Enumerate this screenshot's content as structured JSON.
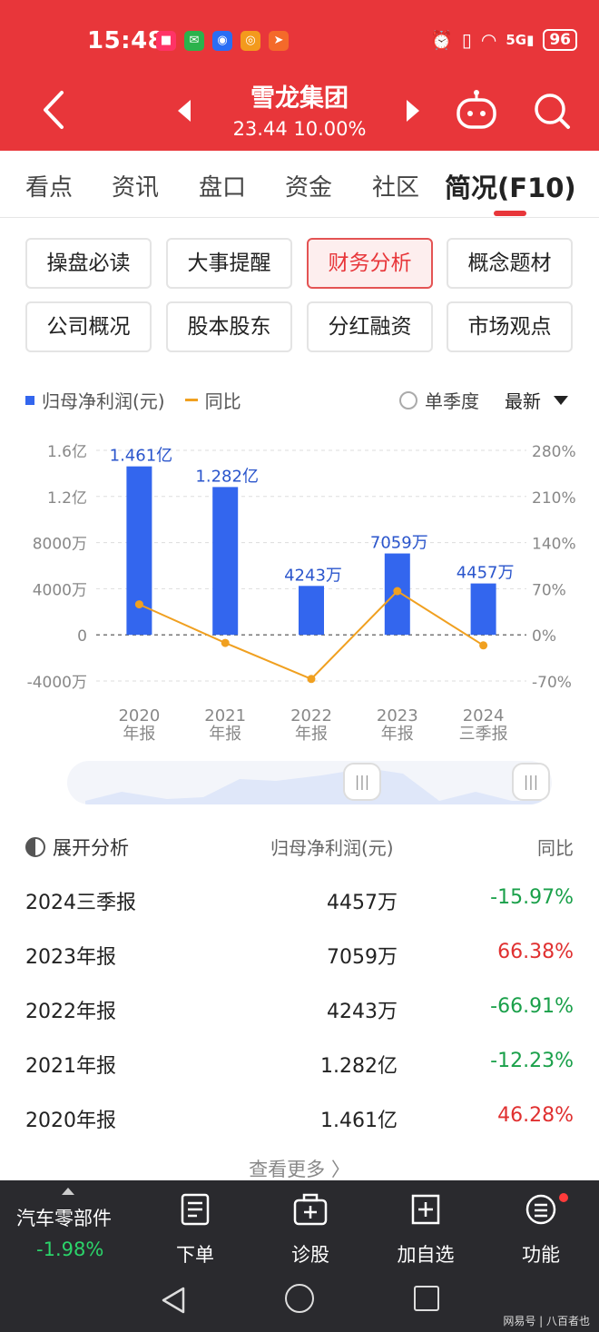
{
  "status_bar": {
    "time": "15:48",
    "network": "5G",
    "battery": "96"
  },
  "header": {
    "stock_name": "雪龙集团",
    "stock_price": "23.44 10.00%"
  },
  "tabs": [
    {
      "label": "看点"
    },
    {
      "label": "资讯"
    },
    {
      "label": "盘口"
    },
    {
      "label": "资金"
    },
    {
      "label": "社区"
    },
    {
      "label": "简况(F10)"
    }
  ],
  "active_tab": "简况(F10)",
  "buttons": [
    {
      "label": "操盘必读"
    },
    {
      "label": "大事提醒"
    },
    {
      "label": "财务分析"
    },
    {
      "label": "概念题材"
    },
    {
      "label": "公司概况"
    },
    {
      "label": "股本股东"
    },
    {
      "label": "分红融资"
    },
    {
      "label": "市场观点"
    }
  ],
  "active_button": "财务分析",
  "legend": {
    "bar_label": "归母净利润(元)",
    "line_label": "同比",
    "quarterly_label": "单季度",
    "latest_label": "最新"
  },
  "colors": {
    "accent": "#e8363a",
    "bar": "#3366ee",
    "line": "#f0a020",
    "positive": "#e03030",
    "negative": "#1aa04a"
  },
  "chart_data": {
    "type": "bar",
    "categories": [
      "2020年报",
      "2021年报",
      "2022年报",
      "2023年报",
      "2024三季报"
    ],
    "category_lines": [
      [
        "2020",
        "年报"
      ],
      [
        "2021",
        "年报"
      ],
      [
        "2022",
        "年报"
      ],
      [
        "2023",
        "年报"
      ],
      [
        "2024",
        "三季报"
      ]
    ],
    "series": [
      {
        "name": "归母净利润(元)",
        "type": "bar",
        "axis": "left",
        "values": [
          14610,
          12820,
          4243,
          7059,
          4457
        ],
        "unit": "万",
        "labels": [
          "1.461亿",
          "1.282亿",
          "4243万",
          "7059万",
          "4457万"
        ]
      },
      {
        "name": "同比",
        "type": "line",
        "axis": "right",
        "values": [
          46.28,
          -12.23,
          -66.91,
          66.38,
          -15.97
        ],
        "unit": "%"
      }
    ],
    "y_left": {
      "ticks": [
        16000,
        12000,
        8000,
        4000,
        0,
        -4000
      ],
      "tick_labels": [
        "1.6亿",
        "1.2亿",
        "8000万",
        "4000万",
        "0",
        "-4000万"
      ],
      "ylim": [
        -4000,
        16000
      ]
    },
    "y_right": {
      "ticks": [
        280,
        210,
        140,
        70,
        0,
        -70
      ],
      "tick_labels": [
        "280%",
        "210%",
        "140%",
        "70%",
        "0%",
        "-70%"
      ],
      "ylim": [
        -70,
        280
      ]
    },
    "grid": true
  },
  "table": {
    "header": {
      "expand": "展开分析",
      "col2": "归母净利润(元)",
      "col3": "同比"
    },
    "rows": [
      {
        "period": "2024三季报",
        "profit": "4457万",
        "yoy": "-15.97%",
        "dir": "neg"
      },
      {
        "period": "2023年报",
        "profit": "7059万",
        "yoy": "66.38%",
        "dir": "pos"
      },
      {
        "period": "2022年报",
        "profit": "4243万",
        "yoy": "-66.91%",
        "dir": "neg"
      },
      {
        "period": "2021年报",
        "profit": "1.282亿",
        "yoy": "-12.23%",
        "dir": "neg"
      },
      {
        "period": "2020年报",
        "profit": "1.461亿",
        "yoy": "46.28%",
        "dir": "pos"
      }
    ],
    "more": "查看更多 〉"
  },
  "bottom_bar": {
    "sector_name": "汽车零部件",
    "sector_change": "-1.98%",
    "items": [
      {
        "label": "下单",
        "icon": "order-icon"
      },
      {
        "label": "诊股",
        "icon": "diagnose-icon"
      },
      {
        "label": "加自选",
        "icon": "add-favorite-icon"
      },
      {
        "label": "功能",
        "icon": "menu-icon"
      }
    ]
  },
  "watermark": "网易号 | 八百者也"
}
